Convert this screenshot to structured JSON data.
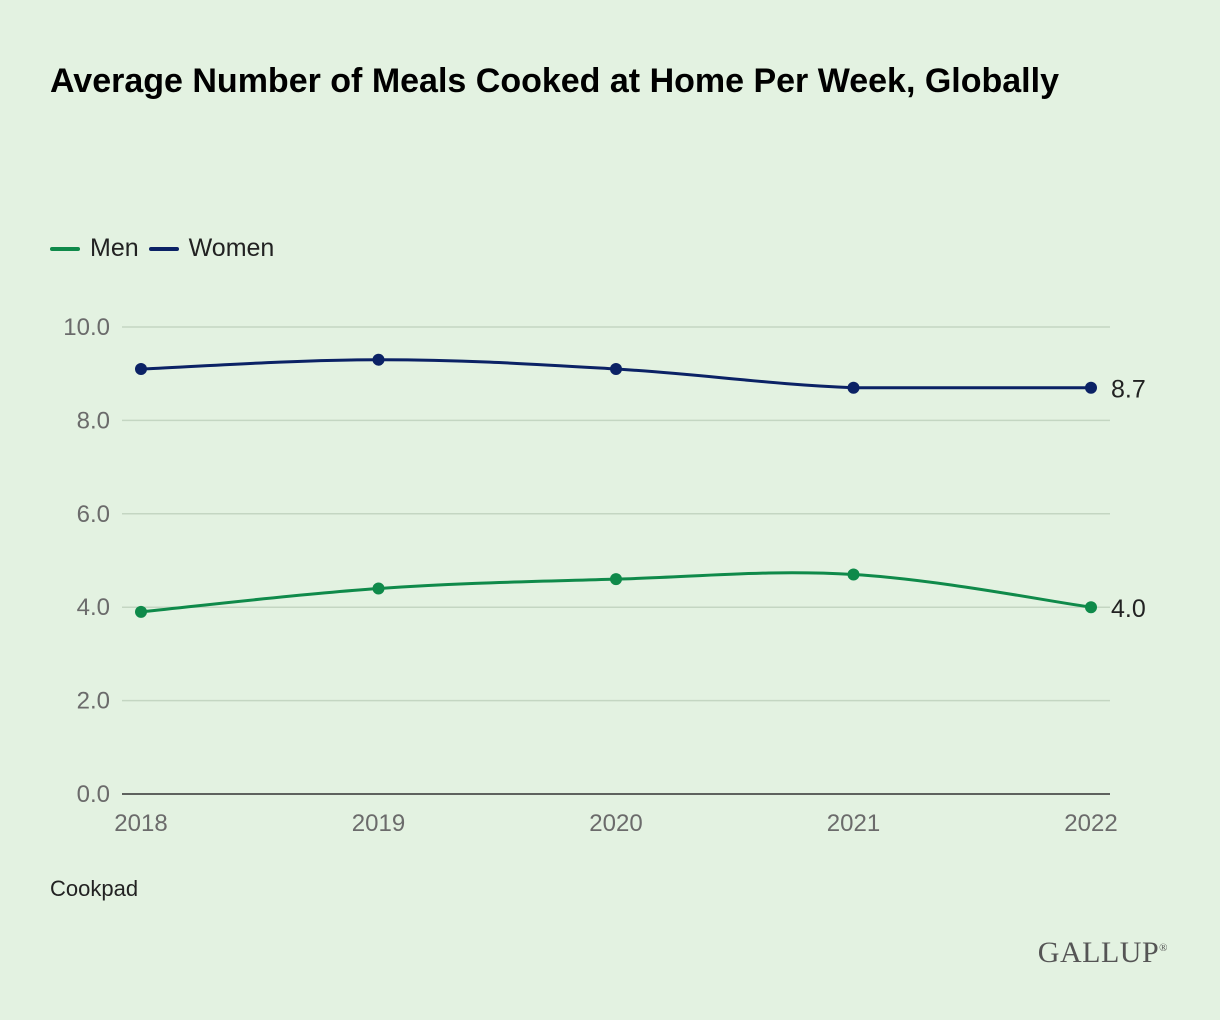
{
  "title": "Average Number of Meals Cooked at Home Per Week, Globally",
  "source": "Cookpad",
  "brand": "GALLUP",
  "brand_mark": "®",
  "chart_data": {
    "type": "line",
    "title": "Average Number of Meals Cooked at Home Per Week, Globally",
    "xlabel": "",
    "ylabel": "",
    "categories": [
      "2018",
      "2019",
      "2020",
      "2021",
      "2022"
    ],
    "ylim": [
      0,
      10
    ],
    "yticks": [
      "0.0",
      "2.0",
      "4.0",
      "6.0",
      "8.0",
      "10.0"
    ],
    "grid": true,
    "legend_position": "top-left",
    "series": [
      {
        "name": "Men",
        "color": "#0f8a4a",
        "values": [
          3.9,
          4.4,
          4.6,
          4.7,
          4.0
        ],
        "end_label": "4.0"
      },
      {
        "name": "Women",
        "color": "#0b2265",
        "values": [
          9.1,
          9.3,
          9.1,
          8.7,
          8.7
        ],
        "end_label": "8.7"
      }
    ]
  }
}
